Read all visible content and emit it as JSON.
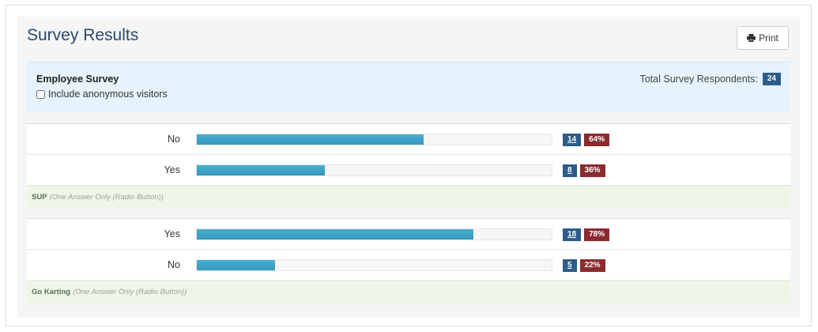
{
  "header": {
    "title": "Survey Results",
    "print_label": "Print"
  },
  "survey": {
    "name": "Employee Survey",
    "anonymous_label": "Include anonymous visitors",
    "anonymous_checked": false,
    "total_label": "Total Survey Respondents:",
    "total_count": "24"
  },
  "questions": [
    {
      "name": "SUP",
      "type": "(One Answer Only (Radio Button))",
      "answers": [
        {
          "label": "No",
          "count": "14",
          "percent": "64%",
          "fraction": 0.64
        },
        {
          "label": "Yes",
          "count": "8",
          "percent": "36%",
          "fraction": 0.36
        }
      ]
    },
    {
      "name": "Go Karting",
      "type": "(One Answer Only (Radio Button))",
      "answers": [
        {
          "label": "Yes",
          "count": "18",
          "percent": "78%",
          "fraction": 0.78
        },
        {
          "label": "No",
          "count": "5",
          "percent": "22%",
          "fraction": 0.22
        }
      ]
    }
  ],
  "colors": {
    "title": "#2a4a6e",
    "bar": "#3fa6cb",
    "count_badge": "#2d5b8a",
    "percent_badge": "#8b2b2f",
    "info_bg": "#e6f3fc",
    "footer_bg": "#eef6e7"
  },
  "icons": {
    "print": "printer-icon"
  }
}
